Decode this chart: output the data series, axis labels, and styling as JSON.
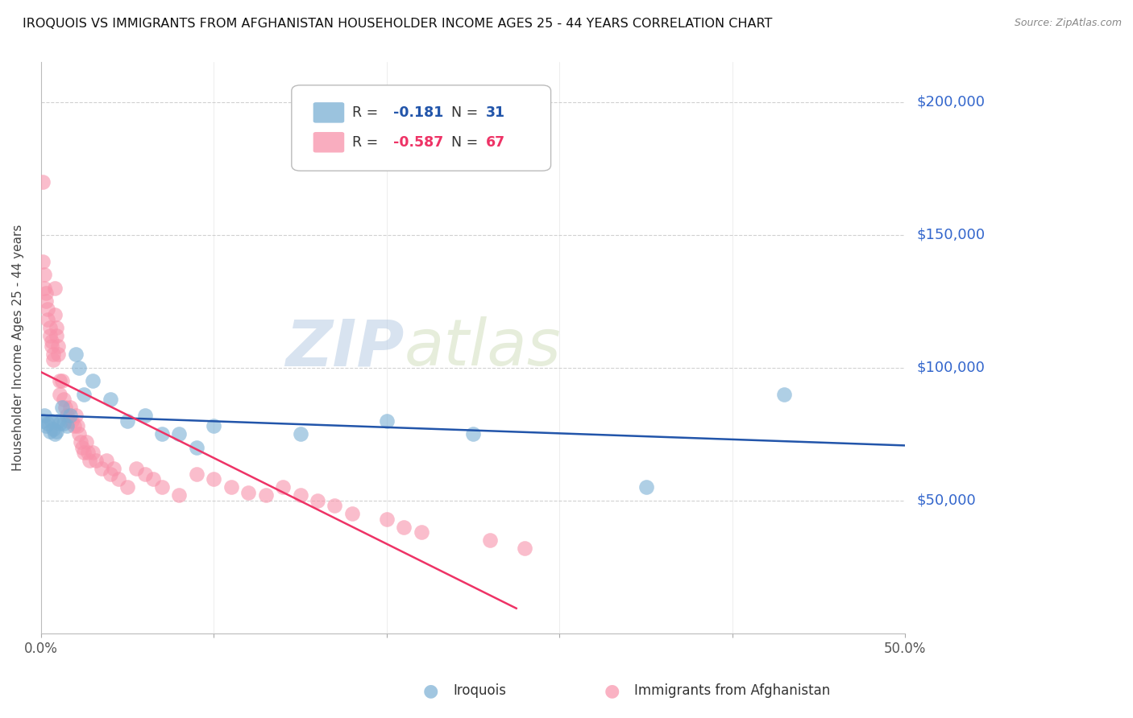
{
  "title": "IROQUOIS VS IMMIGRANTS FROM AFGHANISTAN HOUSEHOLDER INCOME AGES 25 - 44 YEARS CORRELATION CHART",
  "source": "Source: ZipAtlas.com",
  "ylabel": "Householder Income Ages 25 - 44 years",
  "ytick_labels": [
    "$50,000",
    "$100,000",
    "$150,000",
    "$200,000"
  ],
  "ytick_values": [
    50000,
    100000,
    150000,
    200000
  ],
  "xlim": [
    0.0,
    0.5
  ],
  "ylim": [
    0,
    215000
  ],
  "watermark_zip": "ZIP",
  "watermark_atlas": "atlas",
  "color_blue": "#7aafd4",
  "color_pink": "#f892aa",
  "color_blue_line": "#2255aa",
  "color_pink_line": "#ee3366",
  "color_ytick": "#3366CC",
  "iroquois_x": [
    0.001,
    0.002,
    0.003,
    0.004,
    0.005,
    0.006,
    0.007,
    0.008,
    0.009,
    0.01,
    0.011,
    0.012,
    0.013,
    0.015,
    0.017,
    0.02,
    0.022,
    0.025,
    0.03,
    0.04,
    0.05,
    0.06,
    0.07,
    0.08,
    0.09,
    0.1,
    0.15,
    0.2,
    0.25,
    0.35,
    0.43
  ],
  "iroquois_y": [
    80000,
    82000,
    78000,
    79000,
    76000,
    80000,
    77000,
    75000,
    76000,
    80000,
    79000,
    85000,
    79000,
    78000,
    82000,
    105000,
    100000,
    90000,
    95000,
    88000,
    80000,
    82000,
    75000,
    75000,
    70000,
    78000,
    75000,
    80000,
    75000,
    55000,
    90000
  ],
  "afghanistan_x": [
    0.001,
    0.001,
    0.002,
    0.002,
    0.003,
    0.003,
    0.004,
    0.004,
    0.005,
    0.005,
    0.006,
    0.006,
    0.007,
    0.007,
    0.008,
    0.008,
    0.009,
    0.009,
    0.01,
    0.01,
    0.011,
    0.011,
    0.012,
    0.013,
    0.014,
    0.015,
    0.016,
    0.017,
    0.018,
    0.019,
    0.02,
    0.021,
    0.022,
    0.023,
    0.024,
    0.025,
    0.026,
    0.027,
    0.028,
    0.03,
    0.032,
    0.035,
    0.038,
    0.04,
    0.042,
    0.045,
    0.05,
    0.055,
    0.06,
    0.065,
    0.07,
    0.08,
    0.09,
    0.1,
    0.11,
    0.12,
    0.13,
    0.14,
    0.15,
    0.16,
    0.17,
    0.18,
    0.2,
    0.21,
    0.22,
    0.26,
    0.28
  ],
  "afghanistan_y": [
    170000,
    140000,
    135000,
    130000,
    128000,
    125000,
    122000,
    118000,
    115000,
    112000,
    110000,
    108000,
    105000,
    103000,
    120000,
    130000,
    115000,
    112000,
    108000,
    105000,
    95000,
    90000,
    95000,
    88000,
    85000,
    82000,
    80000,
    85000,
    80000,
    78000,
    82000,
    78000,
    75000,
    72000,
    70000,
    68000,
    72000,
    68000,
    65000,
    68000,
    65000,
    62000,
    65000,
    60000,
    62000,
    58000,
    55000,
    62000,
    60000,
    58000,
    55000,
    52000,
    60000,
    58000,
    55000,
    53000,
    52000,
    55000,
    52000,
    50000,
    48000,
    45000,
    43000,
    40000,
    38000,
    35000,
    32000
  ]
}
